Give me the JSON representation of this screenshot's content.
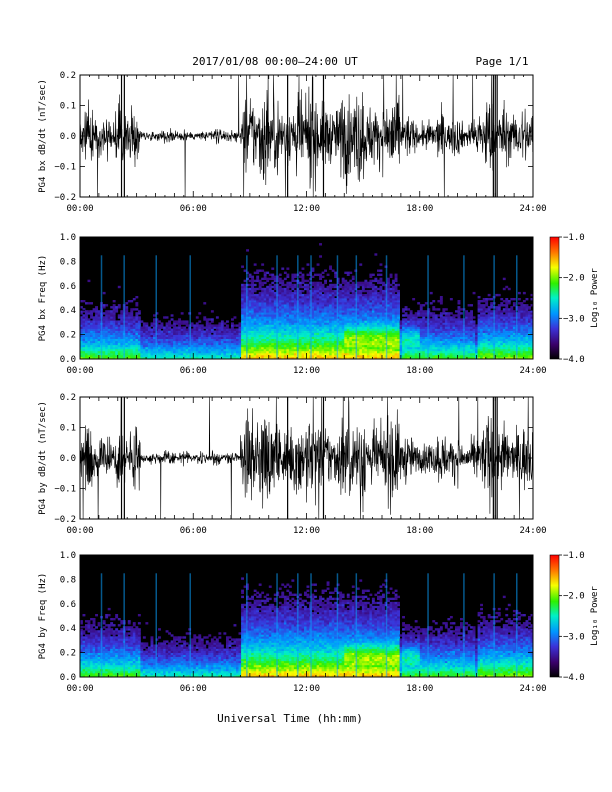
{
  "header": {
    "title": "2017/01/08  00:00–24:00 UT",
    "page": "Page 1/1"
  },
  "footer": {
    "xlabel": "Universal Time (hh:mm)"
  },
  "colors": {
    "trace": "#000000",
    "spectrogram_background": "#000000",
    "colormap": [
      "#000000",
      "#3a006a",
      "#3b32d8",
      "#0095ff",
      "#00f0c8",
      "#2ef000",
      "#f6ff00",
      "#ff7b00",
      "#ff0000"
    ]
  },
  "chart_data": [
    {
      "type": "line",
      "panel": "bx_timeseries",
      "ylabel": "PG4 bx dB/dt (nT/sec)",
      "xlim": [
        "00:00",
        "24:00"
      ],
      "ylim": [
        -0.2,
        0.2
      ],
      "x_ticks": [
        "00:00",
        "06:00",
        "12:00",
        "18:00",
        "24:00"
      ],
      "y_ticks": [
        "0.2",
        "0.1",
        "0.0",
        "−0.1",
        "−0.2"
      ],
      "activity_windows_hours": [
        {
          "start": 0.0,
          "end": 3.2,
          "amplitude": 0.12
        },
        {
          "start": 3.2,
          "end": 8.5,
          "amplitude": 0.03
        },
        {
          "start": 8.5,
          "end": 17.0,
          "amplitude": 0.2
        },
        {
          "start": 17.0,
          "end": 21.0,
          "amplitude": 0.09
        },
        {
          "start": 21.0,
          "end": 24.0,
          "amplitude": 0.15
        }
      ]
    },
    {
      "type": "heatmap",
      "panel": "bx_spectrogram",
      "ylabel": "PG4 bx Freq (Hz)",
      "xlim": [
        "00:00",
        "24:00"
      ],
      "ylim": [
        0.0,
        1.0
      ],
      "x_ticks": [
        "00:00",
        "06:00",
        "12:00",
        "18:00",
        "24:00"
      ],
      "y_ticks": [
        "1.0",
        "0.8",
        "0.6",
        "0.4",
        "0.2",
        "0.0"
      ],
      "colorbar": {
        "label": "Log₁₀ Power",
        "range": [
          -4.0,
          -1.0
        ],
        "ticks": [
          "−1.0",
          "−2.0",
          "−3.0",
          "−4.0"
        ]
      }
    },
    {
      "type": "line",
      "panel": "by_timeseries",
      "ylabel": "PG4 by dB/dt (nT/sec)",
      "xlim": [
        "00:00",
        "24:00"
      ],
      "ylim": [
        -0.2,
        0.2
      ],
      "x_ticks": [
        "00:00",
        "06:00",
        "12:00",
        "18:00",
        "24:00"
      ],
      "y_ticks": [
        "0.2",
        "0.1",
        "0.0",
        "−0.1",
        "−0.2"
      ],
      "activity_windows_hours": [
        {
          "start": 0.0,
          "end": 3.2,
          "amplitude": 0.13
        },
        {
          "start": 3.2,
          "end": 8.5,
          "amplitude": 0.03
        },
        {
          "start": 8.5,
          "end": 17.0,
          "amplitude": 0.2
        },
        {
          "start": 17.0,
          "end": 21.0,
          "amplitude": 0.1
        },
        {
          "start": 21.0,
          "end": 24.0,
          "amplitude": 0.16
        }
      ]
    },
    {
      "type": "heatmap",
      "panel": "by_spectrogram",
      "ylabel": "PG4 by Freq (Hz)",
      "xlim": [
        "00:00",
        "24:00"
      ],
      "ylim": [
        0.0,
        1.0
      ],
      "x_ticks": [
        "00:00",
        "06:00",
        "12:00",
        "18:00",
        "24:00"
      ],
      "y_ticks": [
        "1.0",
        "0.8",
        "0.6",
        "0.4",
        "0.2",
        "0.0"
      ],
      "colorbar": {
        "label": "Log₁₀ Power",
        "range": [
          -4.0,
          -1.0
        ],
        "ticks": [
          "−1.0",
          "−2.0",
          "−3.0",
          "−4.0"
        ]
      }
    }
  ]
}
